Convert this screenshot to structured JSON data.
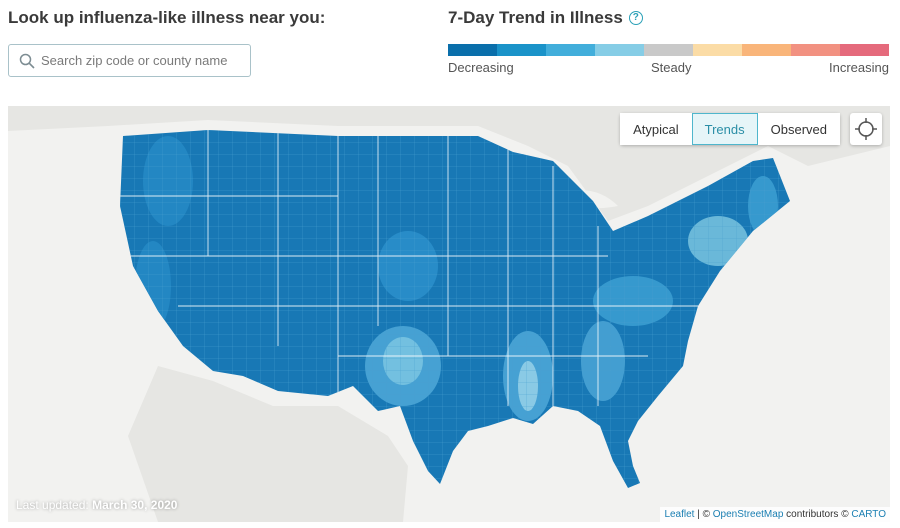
{
  "search": {
    "title": "Look up influenza-like illness near you:",
    "placeholder": "Search zip code or county name",
    "value": ""
  },
  "legend": {
    "title": "7-Day Trend in Illness",
    "colors": [
      "#0a6fab",
      "#1a93c9",
      "#42aedb",
      "#86cde6",
      "#c9c9c9",
      "#fbdca6",
      "#f9b57a",
      "#f29181",
      "#e56a7c"
    ],
    "labels": {
      "low": "Decreasing",
      "mid": "Steady",
      "high": "Increasing"
    }
  },
  "map": {
    "view_modes": [
      {
        "label": "Atypical",
        "active": false
      },
      {
        "label": "Trends",
        "active": true
      },
      {
        "label": "Observed",
        "active": false
      }
    ],
    "locate_icon": "crosshair-icon",
    "last_updated_label": "Last updated:",
    "last_updated_date": "March 30, 2020",
    "attribution": {
      "leaflet": "Leaflet",
      "sep": "| ©",
      "osm": "OpenStreetMap",
      "contributors": "contributors ©",
      "carto": "CARTO"
    },
    "land_color": "#1878b5",
    "water_color": "#f2f2f0"
  }
}
